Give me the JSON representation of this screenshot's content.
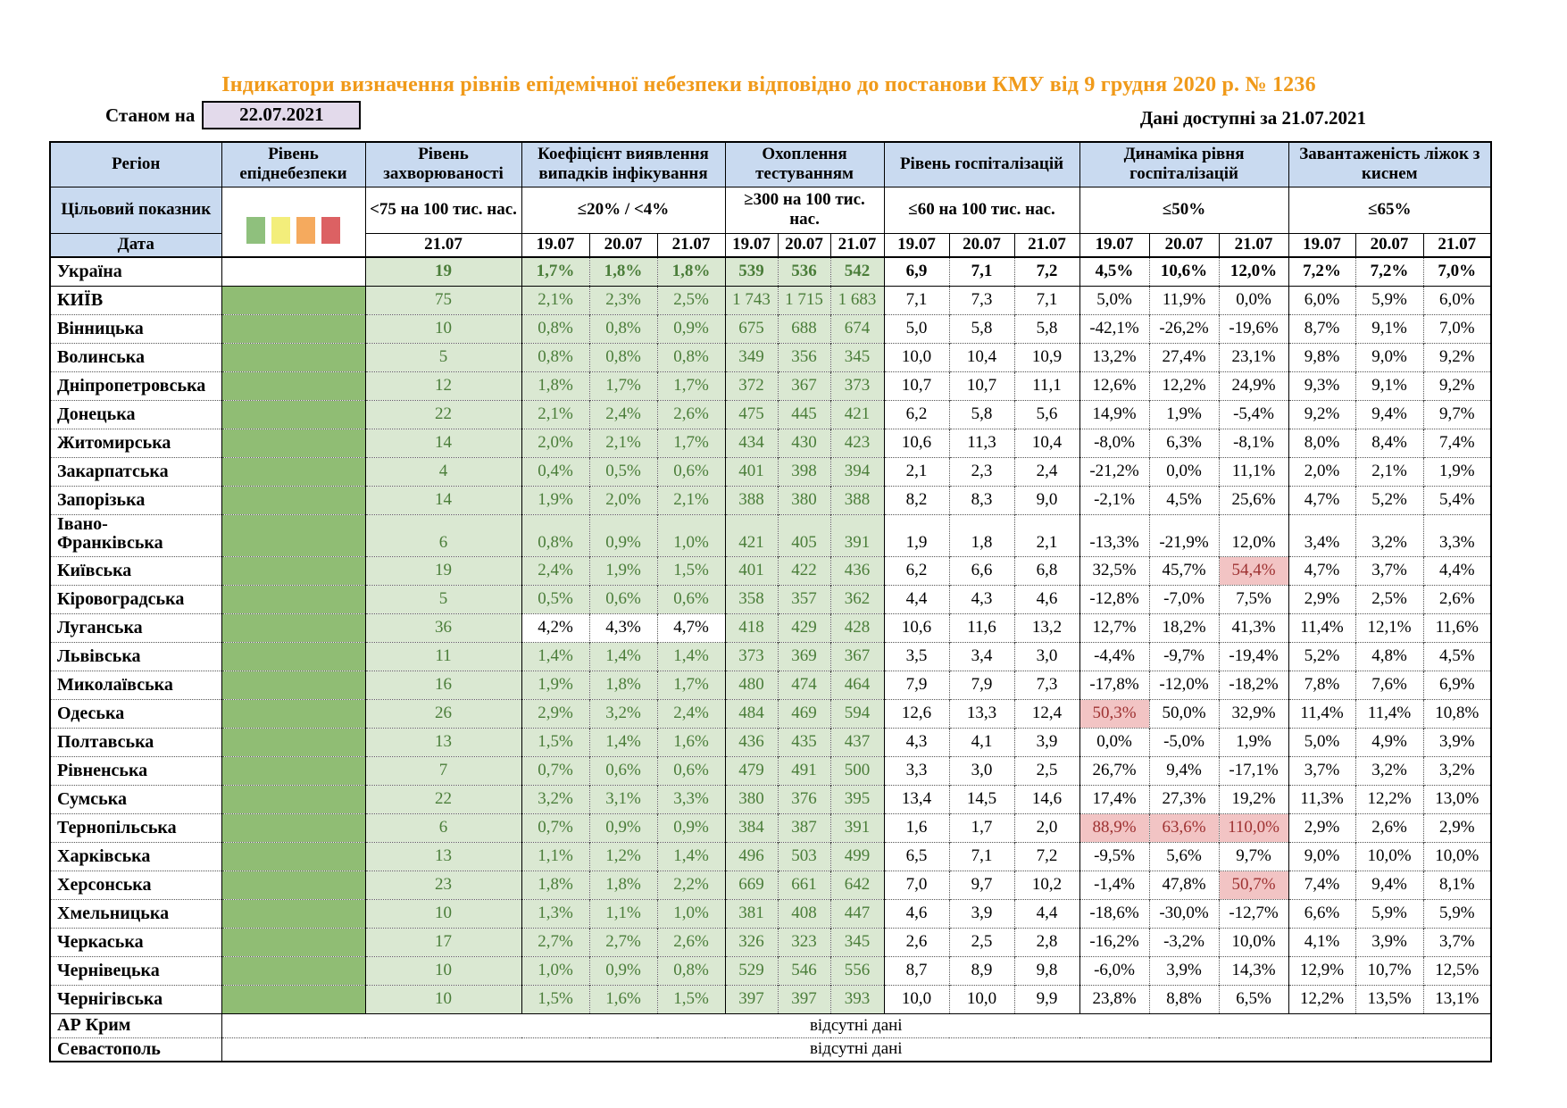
{
  "title": "Індикатори визначення рівнів епідемічної небезпеки відповідно до постанови КМУ від 9 грудня 2020 р. № 1236",
  "as_of": {
    "label": "Станом на",
    "date": "22.07.2021"
  },
  "available": {
    "label": "Дані доступні за",
    "date": "21.07.2021"
  },
  "colors": {
    "title_orange": "#F09A1A",
    "header_blue": "#C9DAF0",
    "asof_lavender": "#E3DAEB",
    "risk_green_solid": "#90BD74",
    "cell_green_light": "#DAE8D2",
    "green_text": "#4A7D39",
    "highlight_pink": "#F2C4C4",
    "highlight_red_text": "#9E3232"
  },
  "legend_swatches": [
    {
      "name": "green",
      "color": "#8FC07D"
    },
    {
      "name": "yellow",
      "color": "#F3EE7B"
    },
    {
      "name": "orange",
      "color": "#F5AA5E"
    },
    {
      "name": "red",
      "color": "#DC6163"
    }
  ],
  "columns": {
    "region": "Регіон",
    "target_label": "Цільовий показник",
    "date_label": "Дата",
    "groups": [
      {
        "id": "epid",
        "title": "Рівень епіднебезпеки",
        "target": "",
        "dates": []
      },
      {
        "id": "morb",
        "title": "Рівень захворюваності",
        "target": "<75 на 100 тис. нас.",
        "dates": [
          "21.07"
        ]
      },
      {
        "id": "coef",
        "title": "Коефіцієнт виявлення випадків інфікування",
        "target": "≤20% / <4%",
        "dates": [
          "19.07",
          "20.07",
          "21.07"
        ]
      },
      {
        "id": "test",
        "title": "Охоплення тестуванням",
        "target": "≥300 на 100 тис. нас.",
        "dates": [
          "19.07",
          "20.07",
          "21.07"
        ]
      },
      {
        "id": "hosp",
        "title": "Рівень госпіталізацій",
        "target": "≤60 на 100 тис. нас.",
        "dates": [
          "19.07",
          "20.07",
          "21.07"
        ]
      },
      {
        "id": "dyn",
        "title": "Динаміка рівня госпіталізацій",
        "target": "≤50%",
        "dates": [
          "19.07",
          "20.07",
          "21.07"
        ]
      },
      {
        "id": "oxy",
        "title": "Завантаженість ліжок з киснем",
        "target": "≤65%",
        "dates": [
          "19.07",
          "20.07",
          "21.07"
        ]
      }
    ]
  },
  "rows": [
    {
      "name": "Україна",
      "bold": true,
      "epid_white": true,
      "morb": "19",
      "coef": [
        "1,7%",
        "1,8%",
        "1,8%"
      ],
      "test": [
        "539",
        "536",
        "542"
      ],
      "hosp": [
        "6,9",
        "7,1",
        "7,2"
      ],
      "dyn": [
        "4,5%",
        "10,6%",
        "12,0%"
      ],
      "oxy": [
        "7,2%",
        "7,2%",
        "7,0%"
      ]
    },
    {
      "name": "КИЇВ",
      "solid_top": true,
      "morb": "75",
      "coef": [
        "2,1%",
        "2,3%",
        "2,5%"
      ],
      "test": [
        "1 743",
        "1 715",
        "1 683"
      ],
      "hosp": [
        "7,1",
        "7,3",
        "7,1"
      ],
      "dyn": [
        "5,0%",
        "11,9%",
        "0,0%"
      ],
      "oxy": [
        "6,0%",
        "5,9%",
        "6,0%"
      ]
    },
    {
      "name": "Вінницька",
      "morb": "10",
      "coef": [
        "0,8%",
        "0,8%",
        "0,9%"
      ],
      "test": [
        "675",
        "688",
        "674"
      ],
      "hosp": [
        "5,0",
        "5,8",
        "5,8"
      ],
      "dyn": [
        "-42,1%",
        "-26,2%",
        "-19,6%"
      ],
      "oxy": [
        "8,7%",
        "9,1%",
        "7,0%"
      ]
    },
    {
      "name": "Волинська",
      "morb": "5",
      "coef": [
        "0,8%",
        "0,8%",
        "0,8%"
      ],
      "test": [
        "349",
        "356",
        "345"
      ],
      "hosp": [
        "10,0",
        "10,4",
        "10,9"
      ],
      "dyn": [
        "13,2%",
        "27,4%",
        "23,1%"
      ],
      "oxy": [
        "9,8%",
        "9,0%",
        "9,2%"
      ]
    },
    {
      "name": "Дніпропетровська",
      "morb": "12",
      "coef": [
        "1,8%",
        "1,7%",
        "1,7%"
      ],
      "test": [
        "372",
        "367",
        "373"
      ],
      "hosp": [
        "10,7",
        "10,7",
        "11,1"
      ],
      "dyn": [
        "12,6%",
        "12,2%",
        "24,9%"
      ],
      "oxy": [
        "9,3%",
        "9,1%",
        "9,2%"
      ]
    },
    {
      "name": "Донецька",
      "morb": "22",
      "coef": [
        "2,1%",
        "2,4%",
        "2,6%"
      ],
      "test": [
        "475",
        "445",
        "421"
      ],
      "hosp": [
        "6,2",
        "5,8",
        "5,6"
      ],
      "dyn": [
        "14,9%",
        "1,9%",
        "-5,4%"
      ],
      "oxy": [
        "9,2%",
        "9,4%",
        "9,7%"
      ]
    },
    {
      "name": "Житомирська",
      "morb": "14",
      "coef": [
        "2,0%",
        "2,1%",
        "1,7%"
      ],
      "test": [
        "434",
        "430",
        "423"
      ],
      "hosp": [
        "10,6",
        "11,3",
        "10,4"
      ],
      "dyn": [
        "-8,0%",
        "6,3%",
        "-8,1%"
      ],
      "oxy": [
        "8,0%",
        "8,4%",
        "7,4%"
      ]
    },
    {
      "name": "Закарпатська",
      "morb": "4",
      "coef": [
        "0,4%",
        "0,5%",
        "0,6%"
      ],
      "test": [
        "401",
        "398",
        "394"
      ],
      "hosp": [
        "2,1",
        "2,3",
        "2,4"
      ],
      "dyn": [
        "-21,2%",
        "0,0%",
        "11,1%"
      ],
      "oxy": [
        "2,0%",
        "2,1%",
        "1,9%"
      ]
    },
    {
      "name": "Запорізька",
      "morb": "14",
      "coef": [
        "1,9%",
        "2,0%",
        "2,1%"
      ],
      "test": [
        "388",
        "380",
        "388"
      ],
      "hosp": [
        "8,2",
        "8,3",
        "9,0"
      ],
      "dyn": [
        "-2,1%",
        "4,5%",
        "25,6%"
      ],
      "oxy": [
        "4,7%",
        "5,2%",
        "5,4%"
      ]
    },
    {
      "name": "Івано-Франківська",
      "name_lines": [
        "Івано-",
        "Франківська"
      ],
      "tall": true,
      "morb": "6",
      "coef": [
        "0,8%",
        "0,9%",
        "1,0%"
      ],
      "test": [
        "421",
        "405",
        "391"
      ],
      "hosp": [
        "1,9",
        "1,8",
        "2,1"
      ],
      "dyn": [
        "-13,3%",
        "-21,9%",
        "12,0%"
      ],
      "oxy": [
        "3,4%",
        "3,2%",
        "3,3%"
      ]
    },
    {
      "name": "Київська",
      "morb": "19",
      "coef": [
        "2,4%",
        "1,9%",
        "1,5%"
      ],
      "test": [
        "401",
        "422",
        "436"
      ],
      "hosp": [
        "6,2",
        "6,6",
        "6,8"
      ],
      "dyn": [
        "32,5%",
        "45,7%",
        "54,4%"
      ],
      "dyn_hl": [
        2
      ],
      "oxy": [
        "4,7%",
        "3,7%",
        "4,4%"
      ]
    },
    {
      "name": "Кіровоградська",
      "morb": "5",
      "coef": [
        "0,5%",
        "0,6%",
        "0,6%"
      ],
      "test": [
        "358",
        "357",
        "362"
      ],
      "hosp": [
        "4,4",
        "4,3",
        "4,6"
      ],
      "dyn": [
        "-12,8%",
        "-7,0%",
        "7,5%"
      ],
      "oxy": [
        "2,9%",
        "2,5%",
        "2,6%"
      ]
    },
    {
      "name": "Луганська",
      "morb": "36",
      "coef_white": true,
      "coef": [
        "4,2%",
        "4,3%",
        "4,7%"
      ],
      "test": [
        "418",
        "429",
        "428"
      ],
      "hosp": [
        "10,6",
        "11,6",
        "13,2"
      ],
      "dyn": [
        "12,7%",
        "18,2%",
        "41,3%"
      ],
      "oxy": [
        "11,4%",
        "12,1%",
        "11,6%"
      ]
    },
    {
      "name": "Львівська",
      "morb": "11",
      "coef": [
        "1,4%",
        "1,4%",
        "1,4%"
      ],
      "test": [
        "373",
        "369",
        "367"
      ],
      "hosp": [
        "3,5",
        "3,4",
        "3,0"
      ],
      "dyn": [
        "-4,4%",
        "-9,7%",
        "-19,4%"
      ],
      "oxy": [
        "5,2%",
        "4,8%",
        "4,5%"
      ]
    },
    {
      "name": "Миколаївська",
      "morb": "16",
      "coef": [
        "1,9%",
        "1,8%",
        "1,7%"
      ],
      "test": [
        "480",
        "474",
        "464"
      ],
      "hosp": [
        "7,9",
        "7,9",
        "7,3"
      ],
      "dyn": [
        "-17,8%",
        "-12,0%",
        "-18,2%"
      ],
      "oxy": [
        "7,8%",
        "7,6%",
        "6,9%"
      ]
    },
    {
      "name": "Одеська",
      "morb": "26",
      "coef": [
        "2,9%",
        "3,2%",
        "2,4%"
      ],
      "test": [
        "484",
        "469",
        "594"
      ],
      "hosp": [
        "12,6",
        "13,3",
        "12,4"
      ],
      "dyn": [
        "50,3%",
        "50,0%",
        "32,9%"
      ],
      "dyn_hl": [
        0
      ],
      "oxy": [
        "11,4%",
        "11,4%",
        "10,8%"
      ]
    },
    {
      "name": "Полтавська",
      "morb": "13",
      "coef": [
        "1,5%",
        "1,4%",
        "1,6%"
      ],
      "test": [
        "436",
        "435",
        "437"
      ],
      "hosp": [
        "4,3",
        "4,1",
        "3,9"
      ],
      "dyn": [
        "0,0%",
        "-5,0%",
        "1,9%"
      ],
      "oxy": [
        "5,0%",
        "4,9%",
        "3,9%"
      ]
    },
    {
      "name": "Рівненська",
      "morb": "7",
      "coef": [
        "0,7%",
        "0,6%",
        "0,6%"
      ],
      "test": [
        "479",
        "491",
        "500"
      ],
      "hosp": [
        "3,3",
        "3,0",
        "2,5"
      ],
      "dyn": [
        "26,7%",
        "9,4%",
        "-17,1%"
      ],
      "oxy": [
        "3,7%",
        "3,2%",
        "3,2%"
      ]
    },
    {
      "name": "Сумська",
      "morb": "22",
      "coef": [
        "3,2%",
        "3,1%",
        "3,3%"
      ],
      "test": [
        "380",
        "376",
        "395"
      ],
      "hosp": [
        "13,4",
        "14,5",
        "14,6"
      ],
      "dyn": [
        "17,4%",
        "27,3%",
        "19,2%"
      ],
      "oxy": [
        "11,3%",
        "12,2%",
        "13,0%"
      ]
    },
    {
      "name": "Тернопільська",
      "morb": "6",
      "coef": [
        "0,7%",
        "0,9%",
        "0,9%"
      ],
      "test": [
        "384",
        "387",
        "391"
      ],
      "hosp": [
        "1,6",
        "1,7",
        "2,0"
      ],
      "dyn": [
        "88,9%",
        "63,6%",
        "110,0%"
      ],
      "dyn_hl": [
        0,
        1,
        2
      ],
      "oxy": [
        "2,9%",
        "2,6%",
        "2,9%"
      ]
    },
    {
      "name": "Харківська",
      "morb": "13",
      "coef": [
        "1,1%",
        "1,2%",
        "1,4%"
      ],
      "test": [
        "496",
        "503",
        "499"
      ],
      "hosp": [
        "6,5",
        "7,1",
        "7,2"
      ],
      "dyn": [
        "-9,5%",
        "5,6%",
        "9,7%"
      ],
      "oxy": [
        "9,0%",
        "10,0%",
        "10,0%"
      ]
    },
    {
      "name": "Херсонська",
      "morb": "23",
      "coef": [
        "1,8%",
        "1,8%",
        "2,2%"
      ],
      "test": [
        "669",
        "661",
        "642"
      ],
      "hosp": [
        "7,0",
        "9,7",
        "10,2"
      ],
      "dyn": [
        "-1,4%",
        "47,8%",
        "50,7%"
      ],
      "dyn_hl": [
        2
      ],
      "oxy": [
        "7,4%",
        "9,4%",
        "8,1%"
      ]
    },
    {
      "name": "Хмельницька",
      "morb": "10",
      "coef": [
        "1,3%",
        "1,1%",
        "1,0%"
      ],
      "test": [
        "381",
        "408",
        "447"
      ],
      "hosp": [
        "4,6",
        "3,9",
        "4,4"
      ],
      "dyn": [
        "-18,6%",
        "-30,0%",
        "-12,7%"
      ],
      "oxy": [
        "6,6%",
        "5,9%",
        "5,9%"
      ]
    },
    {
      "name": "Черкаська",
      "morb": "17",
      "coef": [
        "2,7%",
        "2,7%",
        "2,6%"
      ],
      "test": [
        "326",
        "323",
        "345"
      ],
      "hosp": [
        "2,6",
        "2,5",
        "2,8"
      ],
      "dyn": [
        "-16,2%",
        "-3,2%",
        "10,0%"
      ],
      "oxy": [
        "4,1%",
        "3,9%",
        "3,7%"
      ]
    },
    {
      "name": "Чернівецька",
      "morb": "10",
      "coef": [
        "1,0%",
        "0,9%",
        "0,8%"
      ],
      "test": [
        "529",
        "546",
        "556"
      ],
      "hosp": [
        "8,7",
        "8,9",
        "9,8"
      ],
      "dyn": [
        "-6,0%",
        "3,9%",
        "14,3%"
      ],
      "oxy": [
        "12,9%",
        "10,7%",
        "12,5%"
      ]
    },
    {
      "name": "Чернігівська",
      "morb": "10",
      "coef": [
        "1,5%",
        "1,6%",
        "1,5%"
      ],
      "test": [
        "397",
        "397",
        "393"
      ],
      "hosp": [
        "10,0",
        "10,0",
        "9,9"
      ],
      "dyn": [
        "23,8%",
        "8,8%",
        "6,5%"
      ],
      "oxy": [
        "12,2%",
        "13,5%",
        "13,1%"
      ]
    },
    {
      "name": "АР Крим",
      "solid_top": true,
      "short": true,
      "no_data": "відсутні дані"
    },
    {
      "name": "Севастополь",
      "short": true,
      "no_data": "відсутні дані"
    }
  ]
}
